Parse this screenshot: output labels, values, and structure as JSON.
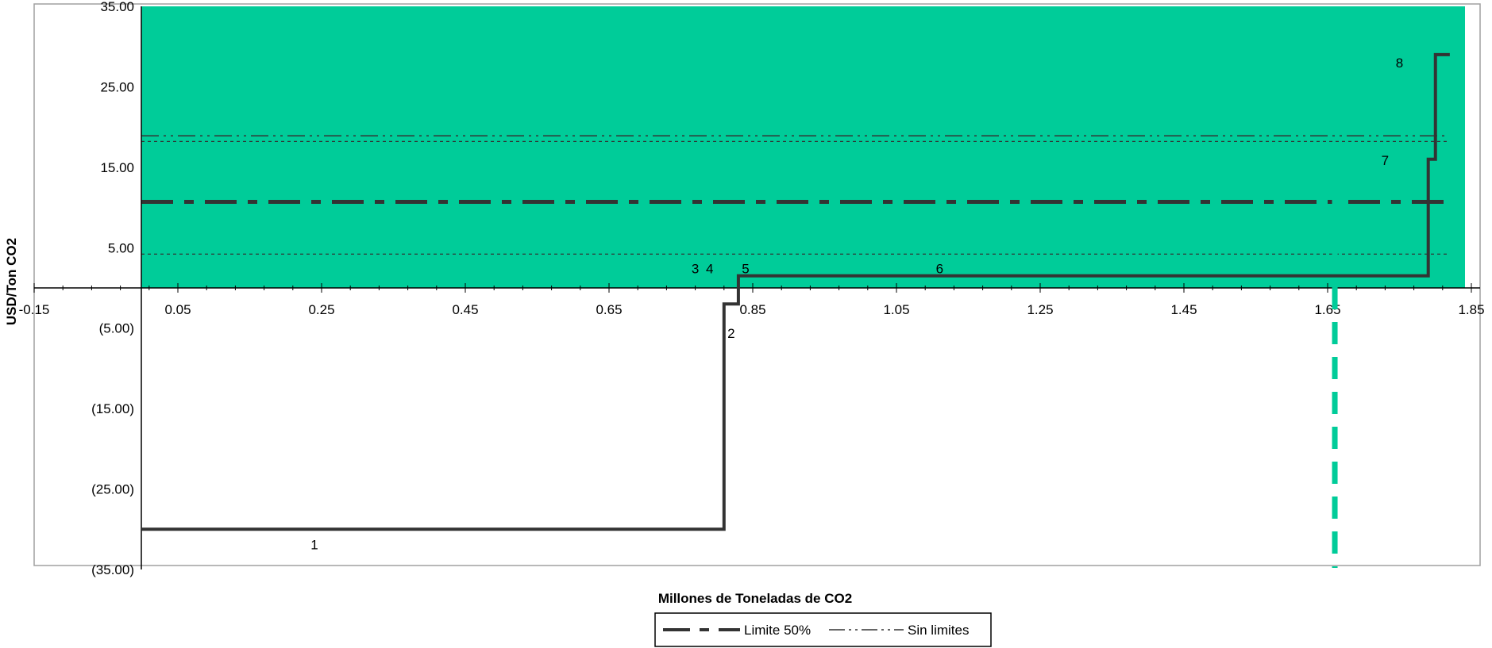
{
  "chart_data": {
    "type": "line",
    "title": "",
    "xlabel": "Millones de Toneladas de CO2",
    "ylabel": "USD/Ton CO2",
    "xlim": [
      -0.15,
      1.85
    ],
    "ylim": [
      -35,
      35
    ],
    "x_ticks": [
      "-0.15",
      "0.05",
      "0.25",
      "0.45",
      "0.65",
      "0.85",
      "1.05",
      "1.25",
      "1.45",
      "1.65",
      "1.85"
    ],
    "x_tick_values": [
      -0.15,
      0.05,
      0.25,
      0.45,
      0.65,
      0.85,
      1.05,
      1.25,
      1.45,
      1.65,
      1.85
    ],
    "y_ticks": [
      "35.00",
      "25.00",
      "15.00",
      "5.00",
      "(5.00)",
      "(15.00)",
      "(25.00)",
      "(35.00)"
    ],
    "y_tick_values": [
      35,
      25,
      15,
      5,
      -5,
      -15,
      -25,
      -35
    ],
    "shaded_region": {
      "y_from": 0,
      "y_to": 35,
      "color": "#00cc99"
    },
    "vertical_line": {
      "x": 1.66,
      "color": "#00cc99",
      "style": "dashed"
    },
    "series": [
      {
        "kind": "step",
        "color": "#333333",
        "x": [
          0.0,
          0.81,
          0.81,
          0.83,
          0.83,
          1.79,
          1.79,
          1.8,
          1.8,
          1.82
        ],
        "y": [
          -30,
          -30,
          -2,
          -2,
          1.5,
          1.5,
          16,
          16,
          29,
          29
        ]
      },
      {
        "name": "Limite 50%",
        "kind": "hline",
        "y": 10.7,
        "color": "#333333",
        "style": "long-dash-dot"
      },
      {
        "name": "Sin limites",
        "kind": "hline",
        "y": 18.9,
        "color": "#333333",
        "style": "dash-dot-dot"
      },
      {
        "kind": "hline",
        "y": 18.2,
        "color": "#333333",
        "style": "dotted"
      },
      {
        "kind": "hline",
        "y": 4.2,
        "color": "#333333",
        "style": "dotted"
      }
    ],
    "step_labels": [
      {
        "text": "1",
        "x": 0.24,
        "y": -32.5
      },
      {
        "text": "2",
        "x": 0.82,
        "y": -6.2
      },
      {
        "text": "3",
        "x": 0.77,
        "y": 1.8
      },
      {
        "text": "4",
        "x": 0.79,
        "y": 1.8
      },
      {
        "text": "5",
        "x": 0.84,
        "y": 1.8
      },
      {
        "text": "6",
        "x": 1.11,
        "y": 1.8
      },
      {
        "text": "7",
        "x": 1.73,
        "y": 15.3
      },
      {
        "text": "8",
        "x": 1.75,
        "y": 27.4
      }
    ],
    "legend": {
      "position": "bottom-center",
      "entries": [
        {
          "label": "Limite 50%",
          "style": "long-dash"
        },
        {
          "label": "Sin limites",
          "style": "dash-dot-dot"
        }
      ]
    },
    "grid": false
  }
}
